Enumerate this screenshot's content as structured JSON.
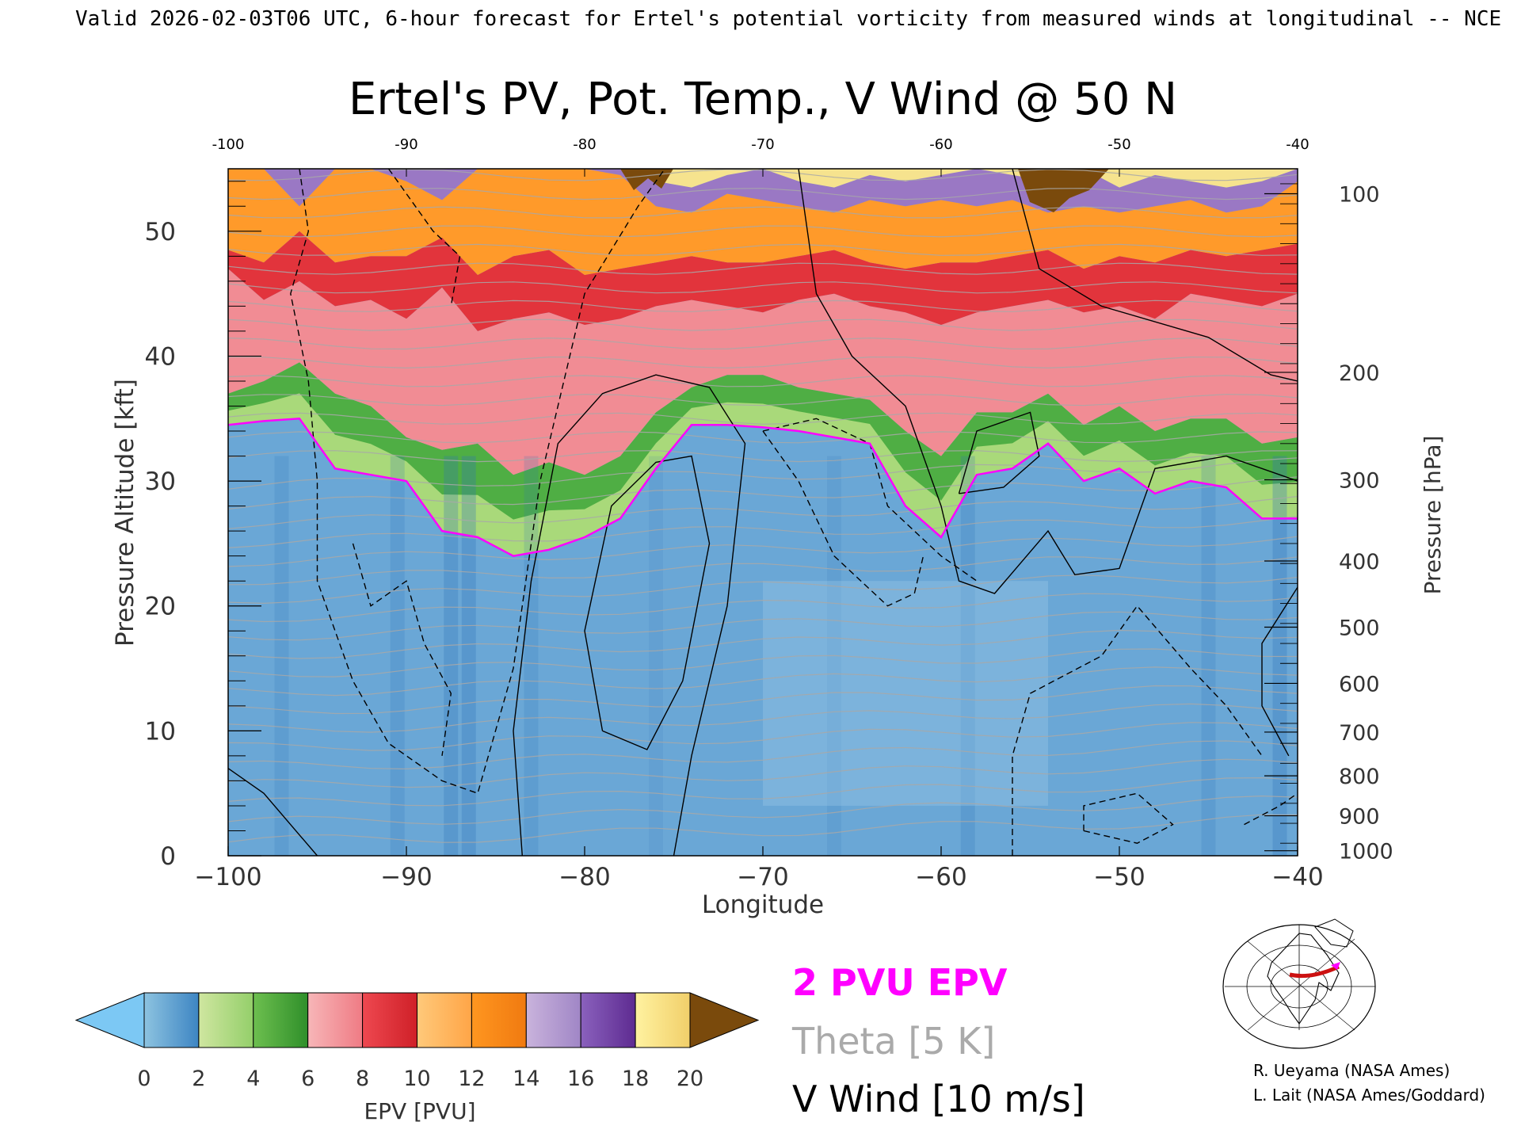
{
  "header_line": "Valid 2026-02-03T06 UTC, 6-hour forecast for Ertel's potential vorticity from measured winds at longitudinal -- NCE",
  "chart_data": {
    "type": "heatmap",
    "title": "Ertel's PV, Pot. Temp., V Wind @ 50 N",
    "xlabel": "Longitude",
    "ylabel_left": "Pressure Altitude [kft]",
    "ylabel_right": "Pressure [hPa]",
    "xlim": [
      -100,
      -40
    ],
    "ylim": [
      0,
      55
    ],
    "x_ticks": [
      -100,
      -90,
      -80,
      -70,
      -60,
      -50,
      -40
    ],
    "x_tick_labels": [
      "−100",
      "−90",
      "−80",
      "−70",
      "−60",
      "−50",
      "−40"
    ],
    "top_ticks": [
      "-100",
      "-90",
      "-80",
      "-70",
      "-60",
      "-50",
      "-40"
    ],
    "y_ticks": [
      0,
      10,
      20,
      30,
      40,
      50
    ],
    "pressure_ticks": [
      {
        "label": "100",
        "kft": 53.0
      },
      {
        "label": "200",
        "kft": 38.7
      },
      {
        "label": "300",
        "kft": 30.1
      },
      {
        "label": "400",
        "kft": 23.6
      },
      {
        "label": "500",
        "kft": 18.3
      },
      {
        "label": "600",
        "kft": 13.8
      },
      {
        "label": "700",
        "kft": 9.9
      },
      {
        "label": "800",
        "kft": 6.4
      },
      {
        "label": "900",
        "kft": 3.2
      },
      {
        "label": "1000",
        "kft": 0.4
      }
    ],
    "x_samples": [
      -100,
      -98,
      -96,
      -94,
      -92,
      -90,
      -88,
      -86,
      -84,
      -82,
      -80,
      -78,
      -76,
      -74,
      -72,
      -70,
      -68,
      -66,
      -64,
      -62,
      -60,
      -58,
      -56,
      -54,
      -52,
      -50,
      -48,
      -46,
      -44,
      -42,
      -40
    ],
    "tropopause_2pvu_kft": [
      34.5,
      34.8,
      35.0,
      31.0,
      30.5,
      30.0,
      26.0,
      25.5,
      24.0,
      24.5,
      25.5,
      27.0,
      31.0,
      34.5,
      34.5,
      34.3,
      34.0,
      33.5,
      33.0,
      28.0,
      25.5,
      30.5,
      31.0,
      33.0,
      30.0,
      31.0,
      29.0,
      30.0,
      29.5,
      27.0,
      27.0
    ],
    "band_tops_kft": {
      "green_top": [
        37.0,
        38.0,
        39.5,
        37.0,
        36.0,
        33.5,
        32.5,
        33.0,
        30.5,
        31.5,
        30.5,
        32.0,
        35.5,
        37.5,
        38.5,
        38.5,
        37.5,
        37.0,
        36.5,
        34.0,
        32.0,
        35.5,
        35.5,
        37.0,
        34.5,
        36.0,
        34.0,
        35.0,
        35.0,
        33.0,
        33.5
      ],
      "pink_top": [
        47.0,
        44.5,
        46.0,
        44.0,
        44.5,
        43.0,
        45.5,
        42.0,
        43.0,
        43.5,
        42.5,
        43.0,
        44.0,
        44.5,
        44.0,
        43.5,
        44.5,
        45.0,
        44.0,
        43.5,
        42.5,
        43.5,
        44.0,
        44.5,
        43.5,
        44.0,
        43.0,
        45.0,
        44.5,
        44.0,
        45.0
      ],
      "red_top": [
        48.5,
        47.5,
        50.0,
        47.5,
        48.0,
        48.0,
        49.5,
        46.5,
        48.0,
        48.5,
        46.5,
        47.0,
        47.5,
        48.0,
        47.5,
        47.5,
        48.0,
        48.5,
        47.5,
        47.0,
        47.5,
        47.5,
        48.0,
        48.5,
        47.0,
        48.0,
        47.5,
        48.5,
        48.0,
        48.5,
        49.0
      ],
      "orange_top": [
        55.0,
        55.0,
        52.0,
        55.0,
        55.0,
        54.0,
        52.5,
        55.0,
        55.0,
        55.0,
        55.0,
        54.5,
        52.0,
        51.5,
        53.0,
        52.5,
        52.0,
        51.5,
        52.5,
        52.0,
        52.5,
        52.0,
        52.5,
        51.5,
        52.0,
        51.5,
        52.0,
        52.5,
        51.5,
        52.0,
        54.0
      ],
      "purple_top": [
        55.0,
        55.0,
        55.0,
        55.0,
        55.0,
        55.0,
        55.0,
        55.0,
        55.0,
        55.0,
        55.0,
        55.0,
        54.0,
        53.5,
        54.5,
        55.0,
        54.0,
        53.5,
        54.5,
        54.0,
        54.5,
        55.0,
        54.5,
        54.0,
        55.0,
        53.5,
        54.5,
        54.0,
        53.5,
        54.0,
        55.0
      ]
    },
    "v_wind_contours": [
      {
        "label": "0",
        "style": "solid",
        "points": [
          [
            -83.5,
            0
          ],
          [
            -84,
            10
          ],
          [
            -83,
            22
          ],
          [
            -81.5,
            33
          ],
          [
            -79,
            37
          ],
          [
            -76,
            38.5
          ],
          [
            -73,
            37.5
          ],
          [
            -71,
            33
          ],
          [
            -72,
            20
          ],
          [
            -74,
            8
          ],
          [
            -75,
            0
          ]
        ]
      },
      {
        "label": "10",
        "style": "solid",
        "points": [
          [
            -79,
            10
          ],
          [
            -80,
            18
          ],
          [
            -78.5,
            28
          ],
          [
            -76,
            31.5
          ],
          [
            -74,
            32
          ],
          [
            -73,
            25
          ],
          [
            -74.5,
            14
          ],
          [
            -76.5,
            8.5
          ],
          [
            -79,
            10
          ]
        ]
      },
      {
        "label": "0",
        "style": "solid",
        "points": [
          [
            -68,
            55
          ],
          [
            -67,
            45
          ],
          [
            -65,
            40
          ],
          [
            -62,
            36
          ],
          [
            -60,
            28
          ],
          [
            -59,
            22
          ],
          [
            -57,
            21
          ],
          [
            -54,
            26
          ],
          [
            -52.5,
            22.5
          ],
          [
            -50,
            23
          ],
          [
            -48,
            31
          ],
          [
            -44,
            32
          ],
          [
            -41,
            30.5
          ],
          [
            -40,
            30
          ]
        ]
      },
      {
        "label": "0",
        "style": "solid",
        "points": [
          [
            -56,
            55
          ],
          [
            -54.5,
            47
          ],
          [
            -51,
            44
          ],
          [
            -45,
            41.5
          ],
          [
            -41.5,
            38.5
          ],
          [
            -40,
            38
          ]
        ]
      },
      {
        "label": "10",
        "style": "solid",
        "points": [
          [
            -59,
            29
          ],
          [
            -58,
            34
          ],
          [
            -55,
            35.5
          ],
          [
            -54.5,
            32
          ],
          [
            -56.5,
            29.5
          ],
          [
            -59,
            29
          ]
        ]
      },
      {
        "label": "0",
        "style": "solid",
        "points": [
          [
            -40,
            21.5
          ],
          [
            -42,
            17
          ],
          [
            -42,
            12
          ],
          [
            -40.5,
            8
          ]
        ]
      },
      {
        "label": "0",
        "style": "solid",
        "points": [
          [
            -100,
            7
          ],
          [
            -98,
            5
          ],
          [
            -95,
            0
          ]
        ]
      },
      {
        "label": "-10",
        "style": "dashed",
        "points": [
          [
            -96,
            55
          ],
          [
            -95.5,
            50
          ],
          [
            -96.5,
            45
          ],
          [
            -95.5,
            38
          ],
          [
            -95,
            30
          ],
          [
            -95,
            22
          ],
          [
            -93,
            14
          ],
          [
            -91,
            9
          ],
          [
            -88,
            6
          ],
          [
            -86,
            5
          ],
          [
            -84,
            15
          ],
          [
            -82.5,
            30
          ],
          [
            -80,
            45
          ],
          [
            -77,
            52
          ],
          [
            -75.5,
            55
          ]
        ]
      },
      {
        "label": "-10",
        "style": "dashed",
        "points": [
          [
            -93,
            25
          ],
          [
            -92,
            20
          ],
          [
            -90,
            22
          ],
          [
            -89,
            17
          ],
          [
            -87.5,
            13
          ],
          [
            -88,
            8
          ]
        ]
      },
      {
        "label": "-10",
        "style": "dashed",
        "points": [
          [
            -91,
            55
          ],
          [
            -88.5,
            50
          ],
          [
            -87,
            48
          ],
          [
            -87.5,
            44
          ]
        ]
      },
      {
        "label": "-10",
        "style": "dashed",
        "points": [
          [
            -70,
            34
          ],
          [
            -67,
            35
          ],
          [
            -64,
            33
          ],
          [
            -63,
            28
          ],
          [
            -60,
            24
          ],
          [
            -58,
            22
          ]
        ]
      },
      {
        "label": "-10",
        "style": "dashed",
        "points": [
          [
            -70,
            34
          ],
          [
            -68,
            30
          ],
          [
            -66,
            24
          ],
          [
            -63,
            20
          ],
          [
            -61.5,
            21
          ],
          [
            -61,
            24
          ]
        ]
      },
      {
        "label": "-10",
        "style": "dashed",
        "points": [
          [
            -56,
            0
          ],
          [
            -56,
            8
          ],
          [
            -55,
            13
          ],
          [
            -51,
            16
          ],
          [
            -49,
            20
          ],
          [
            -46,
            15
          ],
          [
            -44,
            12
          ],
          [
            -42,
            8
          ]
        ]
      },
      {
        "label": "-10",
        "style": "dashed",
        "points": [
          [
            -52,
            2
          ],
          [
            -49,
            1
          ],
          [
            -47,
            2.5
          ],
          [
            -49,
            5
          ],
          [
            -52,
            4
          ],
          [
            -52,
            2
          ]
        ]
      },
      {
        "label": "-10",
        "style": "dashed",
        "points": [
          [
            -43,
            2.5
          ],
          [
            -41,
            4
          ],
          [
            -40,
            5
          ]
        ]
      }
    ]
  },
  "colorbar": {
    "label": "EPV [PVU]",
    "tick_labels": [
      "0",
      "2",
      "4",
      "6",
      "8",
      "10",
      "12",
      "14",
      "16",
      "18",
      "20"
    ],
    "under_color": "#7cc8f4",
    "over_color": "#7a4a0c",
    "segments": [
      [
        "#8dc3e0",
        "#3d85c3"
      ],
      [
        "#cfe6a0",
        "#94cf6a"
      ],
      [
        "#6dbf4f",
        "#2f8f2a"
      ],
      [
        "#f7b6b8",
        "#ef7b84"
      ],
      [
        "#ee4850",
        "#cf2028"
      ],
      [
        "#ffc97a",
        "#ffa547"
      ],
      [
        "#ff9620",
        "#f07a10"
      ],
      [
        "#c9b3dc",
        "#a086c6"
      ],
      [
        "#8a61bd",
        "#5e2b91"
      ],
      [
        "#fff2a0",
        "#f1cf6a"
      ]
    ]
  },
  "legend": {
    "epv_label": "2 PVU EPV",
    "epv_color": "#ff00ff",
    "theta_label": "Theta [5 K]",
    "theta_color": "#aaaaaa",
    "wind_label": "V Wind [10 m/s]",
    "wind_color": "#000000"
  },
  "credits": [
    "R. Ueyama (NASA Ames)",
    "L. Lait (NASA Ames/Goddard)"
  ],
  "colors": {
    "trop_blue": "#6aa7d6",
    "trop_blue_dark": "#3a82c4",
    "tropopause_line": "#ff00ff",
    "theta_line": "#a8a8a8",
    "map_track": "#cc1111"
  }
}
